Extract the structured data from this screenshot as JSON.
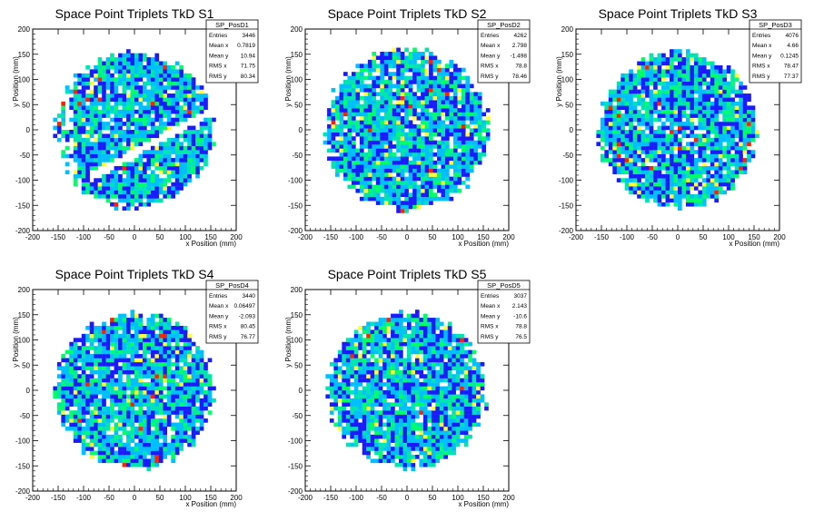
{
  "chart_data": [
    {
      "type": "heatmap",
      "title": "Space Point Triplets TkD S1",
      "xlabel": "x Position (mm)",
      "ylabel": "y Position (mm)",
      "xlim": [
        -200,
        200
      ],
      "ylim": [
        -200,
        200
      ],
      "xticks": [
        "-200",
        "-150",
        "-100",
        "-50",
        "0",
        "50",
        "100",
        "150",
        "200"
      ],
      "yticks": [
        "-200",
        "-150",
        "-100",
        "-50",
        "0",
        "50",
        "100",
        "150",
        "200"
      ],
      "stats": {
        "name": "SP_PosD1",
        "rows": [
          {
            "label": "Entries",
            "value": "3446"
          },
          {
            "label": "Mean x",
            "value": "0.7819"
          },
          {
            "label": "Mean y",
            "value": "10.94"
          },
          {
            "label": "RMS x",
            "value": "71.75"
          },
          {
            "label": "RMS y",
            "value": "80.34"
          }
        ]
      },
      "footprint": {
        "radius_mm": 160,
        "gap_band": true
      },
      "bin_width_mm": 8
    },
    {
      "type": "heatmap",
      "title": "Space Point Triplets TkD S2",
      "xlabel": "x Position (mm)",
      "ylabel": "y Position (mm)",
      "xlim": [
        -200,
        200
      ],
      "ylim": [
        -200,
        200
      ],
      "xticks": [
        "-200",
        "-150",
        "-100",
        "-50",
        "0",
        "50",
        "100",
        "150",
        "200"
      ],
      "yticks": [
        "-200",
        "-150",
        "-100",
        "-50",
        "0",
        "50",
        "100",
        "150",
        "200"
      ],
      "stats": {
        "name": "SP_PosD2",
        "rows": [
          {
            "label": "Entries",
            "value": "4262"
          },
          {
            "label": "Mean x",
            "value": "2.798"
          },
          {
            "label": "Mean y",
            "value": "-1.498"
          },
          {
            "label": "RMS x",
            "value": "78.8"
          },
          {
            "label": "RMS y",
            "value": "78.46"
          }
        ]
      },
      "footprint": {
        "radius_mm": 165,
        "gap_band": false
      },
      "bin_width_mm": 8
    },
    {
      "type": "heatmap",
      "title": "Space Point Triplets TkD S3",
      "xlabel": "x Position (mm)",
      "ylabel": "y Position (mm)",
      "xlim": [
        -200,
        200
      ],
      "ylim": [
        -200,
        200
      ],
      "xticks": [
        "-200",
        "-150",
        "-100",
        "-50",
        "0",
        "50",
        "100",
        "150",
        "200"
      ],
      "yticks": [
        "-200",
        "-150",
        "-100",
        "-50",
        "0",
        "50",
        "100",
        "150",
        "200"
      ],
      "stats": {
        "name": "SP_PosD3",
        "rows": [
          {
            "label": "Entries",
            "value": "4076"
          },
          {
            "label": "Mean x",
            "value": "4.66"
          },
          {
            "label": "Mean y",
            "value": "0.1245"
          },
          {
            "label": "RMS x",
            "value": "78.47"
          },
          {
            "label": "RMS y",
            "value": "77.37"
          }
        ]
      },
      "footprint": {
        "radius_mm": 160,
        "gap_band": false
      },
      "bin_width_mm": 8
    },
    {
      "type": "heatmap",
      "title": "Space Point Triplets TkD S4",
      "xlabel": "x Position (mm)",
      "ylabel": "y Position (mm)",
      "xlim": [
        -200,
        200
      ],
      "ylim": [
        -200,
        200
      ],
      "xticks": [
        "-200",
        "-150",
        "-100",
        "-50",
        "0",
        "50",
        "100",
        "150",
        "200"
      ],
      "yticks": [
        "-200",
        "-150",
        "-100",
        "-50",
        "0",
        "50",
        "100",
        "150",
        "200"
      ],
      "stats": {
        "name": "SP_PosD4",
        "rows": [
          {
            "label": "Entries",
            "value": "3440"
          },
          {
            "label": "Mean x",
            "value": "0.06497"
          },
          {
            "label": "Mean y",
            "value": "-2.093"
          },
          {
            "label": "RMS x",
            "value": "80.45"
          },
          {
            "label": "RMS y",
            "value": "76.77"
          }
        ]
      },
      "footprint": {
        "radius_mm": 160,
        "gap_band": false
      },
      "bin_width_mm": 8
    },
    {
      "type": "heatmap",
      "title": "Space Point Triplets TkD S5",
      "xlabel": "x Position (mm)",
      "ylabel": "y Position (mm)",
      "xlim": [
        -200,
        200
      ],
      "ylim": [
        -200,
        200
      ],
      "xticks": [
        "-200",
        "-150",
        "-100",
        "-50",
        "0",
        "50",
        "100",
        "150",
        "200"
      ],
      "yticks": [
        "-200",
        "-150",
        "-100",
        "-50",
        "0",
        "50",
        "100",
        "150",
        "200"
      ],
      "stats": {
        "name": "SP_PosD5",
        "rows": [
          {
            "label": "Entries",
            "value": "3037"
          },
          {
            "label": "Mean x",
            "value": "2.143"
          },
          {
            "label": "Mean y",
            "value": "-10.6"
          },
          {
            "label": "RMS x",
            "value": "78.8"
          },
          {
            "label": "RMS y",
            "value": "76.5"
          }
        ]
      },
      "footprint": {
        "radius_mm": 160,
        "gap_band": false
      },
      "bin_width_mm": 8
    }
  ],
  "palette": [
    "#1a1aff",
    "#00bfff",
    "#00e5b0",
    "#00ff66",
    "#ffff33",
    "#ff2200"
  ]
}
